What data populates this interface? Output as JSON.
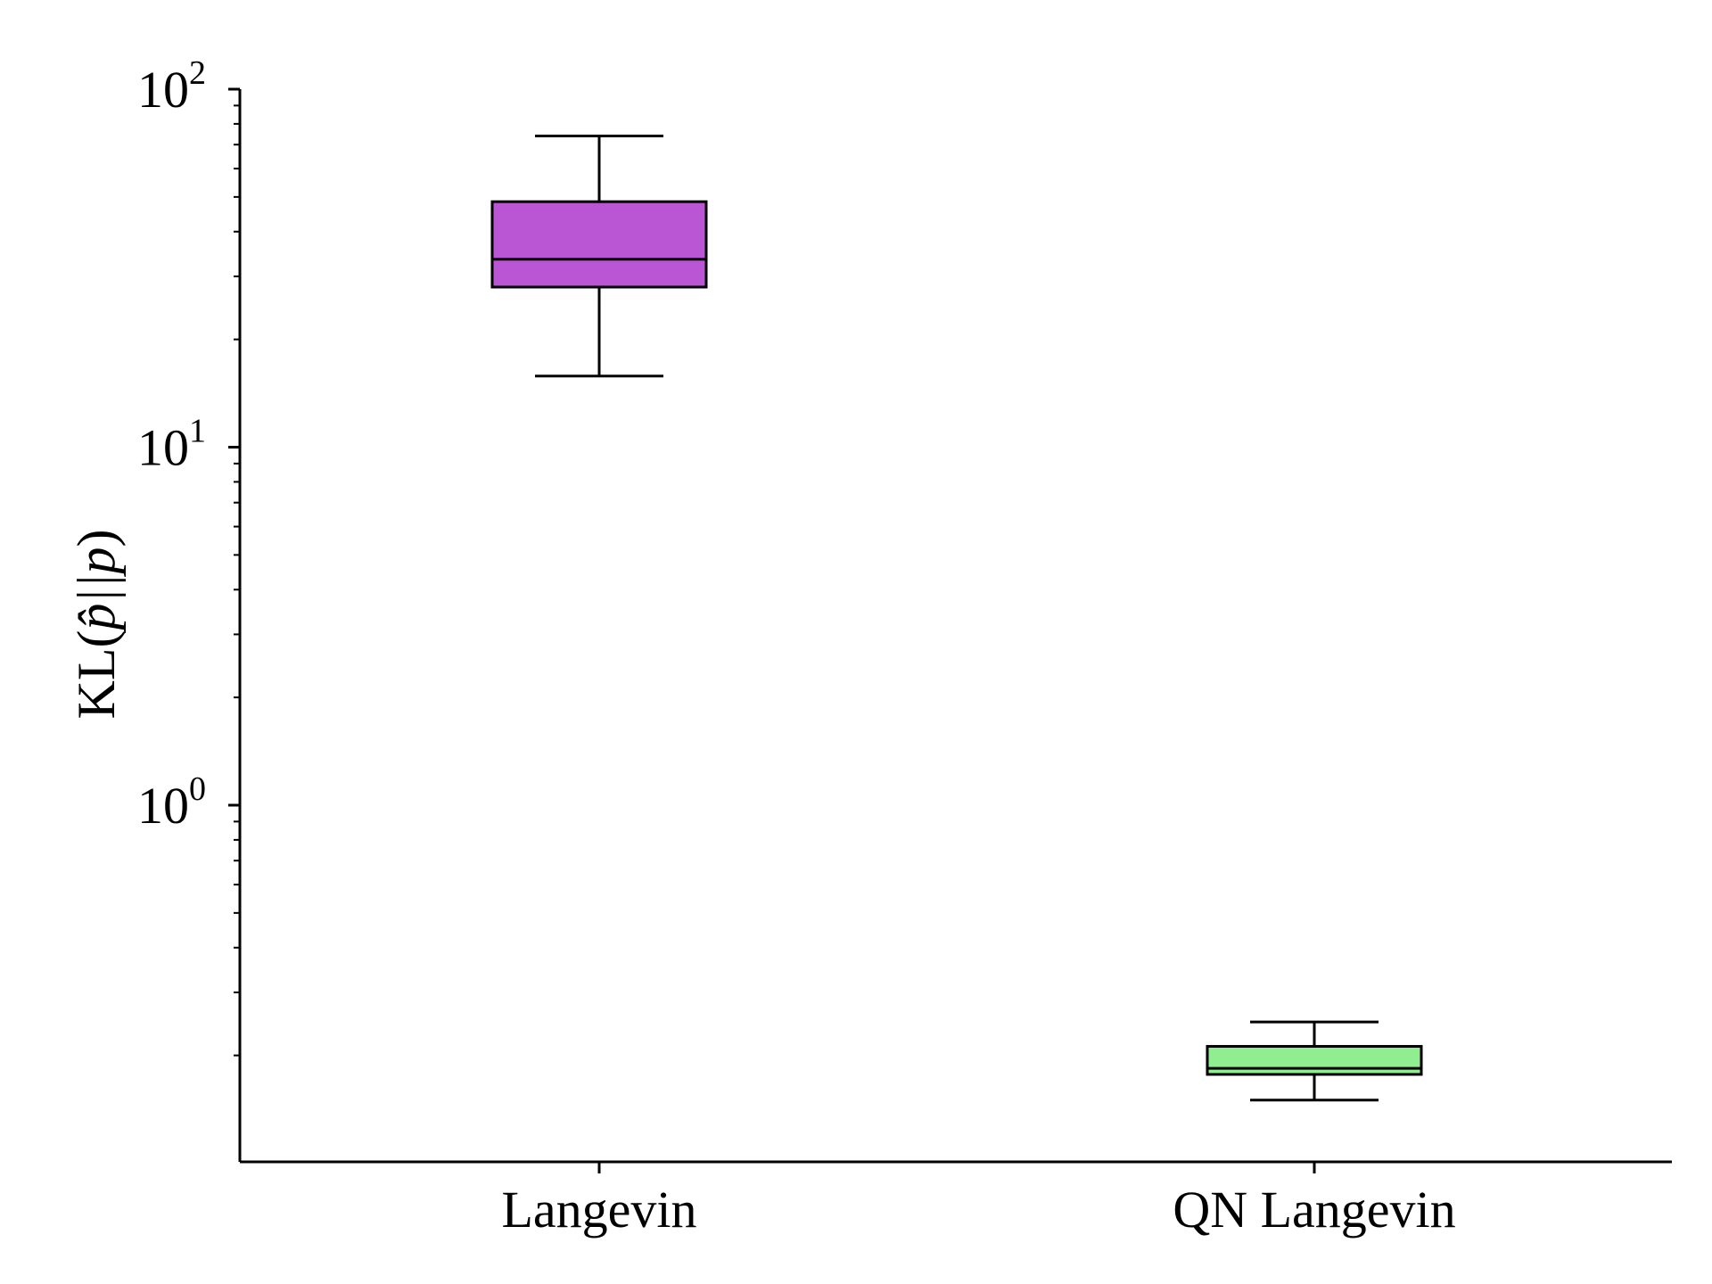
{
  "chart_data": {
    "type": "box",
    "title": "",
    "xlabel": "",
    "ylabel": {
      "prefix": "KL(",
      "math": "p̂||p",
      "suffix": ")"
    },
    "yscale": "log",
    "ylim": [
      0.1,
      100
    ],
    "yticks": [
      {
        "value": 1,
        "base": "10",
        "exp": "0"
      },
      {
        "value": 10,
        "base": "10",
        "exp": "1"
      },
      {
        "value": 100,
        "base": "10",
        "exp": "2"
      }
    ],
    "categories": [
      "Langevin",
      "QN Langevin"
    ],
    "boxes": [
      {
        "name": "Langevin",
        "whisker_low": 15.8,
        "q1": 28.0,
        "median": 33.5,
        "q3": 48.5,
        "whisker_high": 74.0,
        "color": "#BA55D3"
      },
      {
        "name": "QN Langevin",
        "whisker_low": 0.15,
        "q1": 0.177,
        "median": 0.184,
        "q3": 0.212,
        "whisker_high": 0.248,
        "color": "#90EE90"
      }
    ],
    "grid": false,
    "legend": "none",
    "spines": [
      "left",
      "bottom"
    ]
  }
}
